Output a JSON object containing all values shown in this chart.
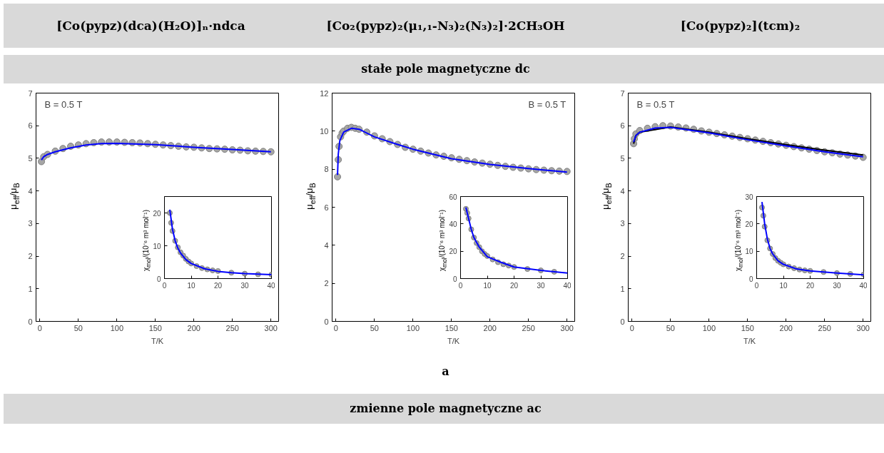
{
  "chart_data": [
    {
      "type": "scatter",
      "title": "[Co(pypz)(dca)(H₂O)]ₙ·ndca",
      "xlabel": "T/K",
      "ylabel": "μ$_{eff}$/μ$_{B}$",
      "xlim": [
        -5,
        310
      ],
      "ylim": [
        0,
        7
      ],
      "xticks": [
        0,
        50,
        100,
        150,
        200,
        250,
        300
      ],
      "yticks": [
        0,
        1,
        2,
        3,
        4,
        5,
        6,
        7
      ],
      "grid": false,
      "marker": "circle",
      "annotations": [
        "stałe pole magnetyczne dc",
        "a",
        "zmienne pole magnetyczne ac",
        "B = 0.5 T"
      ],
      "series": [
        {
          "color": "#a6a6a6",
          "x": [
            2,
            5,
            10,
            20,
            30,
            40,
            50,
            60,
            70,
            80,
            90,
            100,
            110,
            120,
            130,
            140,
            150,
            160,
            170,
            180,
            190,
            200,
            210,
            220,
            230,
            240,
            250,
            260,
            270,
            280,
            290,
            300
          ],
          "values": [
            4.9,
            5.05,
            5.12,
            5.22,
            5.3,
            5.37,
            5.41,
            5.45,
            5.48,
            5.5,
            5.5,
            5.5,
            5.49,
            5.48,
            5.47,
            5.45,
            5.43,
            5.41,
            5.39,
            5.37,
            5.35,
            5.34,
            5.32,
            5.3,
            5.29,
            5.28,
            5.26,
            5.25,
            5.23,
            5.22,
            5.21,
            5.2
          ]
        },
        {
          "type": "line",
          "marker": "none",
          "color": "#0000ff",
          "x": [
            2,
            5,
            10,
            20,
            40,
            60,
            80,
            100,
            150,
            200,
            250,
            300
          ],
          "values": [
            4.95,
            5.05,
            5.12,
            5.2,
            5.32,
            5.41,
            5.45,
            5.46,
            5.42,
            5.34,
            5.27,
            5.2
          ]
        }
      ]
    },
    {
      "type": "scatter",
      "ylabel": "χ$_{mol}$/(10⁻⁶ m³ mol⁻¹)",
      "xlim": [
        0,
        40
      ],
      "ylim": [
        0,
        25
      ],
      "xticks": [
        0,
        10,
        20,
        30,
        40
      ],
      "yticks": [
        0,
        10,
        20
      ],
      "grid": false,
      "marker": "circle",
      "series": [
        {
          "color": "#a6a6a6",
          "x": [
            2,
            2.5,
            3,
            4,
            5,
            6,
            7,
            8,
            9,
            10,
            12,
            14,
            16,
            18,
            20,
            25,
            30,
            35,
            40
          ],
          "values": [
            20,
            17,
            14.5,
            11.5,
            9.5,
            8,
            7,
            6,
            5.2,
            4.6,
            3.8,
            3.2,
            2.8,
            2.5,
            2.3,
            1.8,
            1.5,
            1.3,
            1.2
          ]
        },
        {
          "type": "line",
          "marker": "none",
          "color": "#0000ff",
          "x": [
            2,
            3,
            4,
            5,
            6,
            8,
            10,
            15,
            20,
            25,
            30,
            40
          ],
          "values": [
            21,
            15,
            11.5,
            9.3,
            7.8,
            5.8,
            4.6,
            3,
            2.2,
            1.8,
            1.5,
            1.2
          ]
        }
      ]
    },
    {
      "type": "scatter",
      "title": "[Co₂(pypz)₂(μ₁,₁-N₃)₂(N₃)₂]·2CH₃OH",
      "xlabel": "T/K",
      "ylabel": "μ$_{eff}$/μ$_{B}$",
      "xlim": [
        -5,
        310
      ],
      "ylim": [
        0,
        12
      ],
      "xticks": [
        0,
        50,
        100,
        150,
        200,
        250,
        300
      ],
      "yticks": [
        0,
        2,
        4,
        6,
        8,
        10,
        12
      ],
      "grid": false,
      "marker": "circle",
      "annotations": [
        "B = 0.5 T"
      ],
      "series": [
        {
          "color": "#a6a6a6",
          "x": [
            2,
            3,
            4,
            6,
            8,
            10,
            15,
            20,
            25,
            30,
            40,
            50,
            60,
            70,
            80,
            90,
            100,
            110,
            120,
            130,
            140,
            150,
            160,
            170,
            180,
            190,
            200,
            210,
            220,
            230,
            240,
            250,
            260,
            270,
            280,
            290,
            300
          ],
          "values": [
            7.6,
            8.5,
            9.2,
            9.7,
            9.9,
            10.0,
            10.15,
            10.2,
            10.15,
            10.1,
            9.95,
            9.75,
            9.6,
            9.45,
            9.3,
            9.15,
            9.05,
            8.95,
            8.85,
            8.75,
            8.68,
            8.6,
            8.52,
            8.45,
            8.38,
            8.32,
            8.26,
            8.2,
            8.15,
            8.1,
            8.06,
            8.02,
            7.98,
            7.95,
            7.92,
            7.9,
            7.88
          ]
        },
        {
          "type": "line",
          "marker": "none",
          "color": "#0000ff",
          "x": [
            2,
            3,
            5,
            10,
            20,
            30,
            50,
            80,
            100,
            150,
            200,
            250,
            300
          ],
          "values": [
            7.7,
            8.8,
            9.5,
            9.95,
            10.15,
            10.1,
            9.7,
            9.3,
            9.05,
            8.55,
            8.25,
            8.03,
            7.85
          ]
        }
      ]
    },
    {
      "type": "scatter",
      "ylabel": "χ$_{mol}$/(10⁻⁶ m³ mol⁻¹)",
      "xlim": [
        0,
        40
      ],
      "ylim": [
        0,
        60
      ],
      "xticks": [
        0,
        10,
        20,
        30,
        40
      ],
      "yticks": [
        0,
        20,
        40,
        60
      ],
      "grid": false,
      "marker": "circle",
      "series": [
        {
          "color": "#a6a6a6",
          "x": [
            2,
            2.5,
            3,
            4,
            5,
            6,
            7,
            8,
            9,
            10,
            12,
            14,
            16,
            18,
            20,
            25,
            30,
            35
          ],
          "values": [
            51,
            48,
            44,
            36,
            30,
            26,
            23,
            20,
            18,
            16.5,
            14,
            12,
            10.5,
            9.5,
            8.5,
            7,
            6,
            5
          ]
        },
        {
          "type": "line",
          "marker": "none",
          "color": "#0000ff",
          "x": [
            2,
            3,
            4,
            5,
            7,
            10,
            15,
            20,
            30,
            40
          ],
          "values": [
            52,
            44,
            36,
            30,
            23,
            16,
            12,
            8.5,
            6,
            4
          ]
        }
      ]
    },
    {
      "type": "scatter",
      "title": "[Co(pypz)₂](tcm)₂",
      "xlabel": "T/K",
      "ylabel": "μ$_{eff}$/μ$_{B}$",
      "xlim": [
        -5,
        310
      ],
      "ylim": [
        0,
        7
      ],
      "xticks": [
        0,
        50,
        100,
        150,
        200,
        250,
        300
      ],
      "yticks": [
        0,
        1,
        2,
        3,
        4,
        5,
        6,
        7
      ],
      "grid": false,
      "marker": "circle",
      "annotations": [
        "B = 0.5 T"
      ],
      "series": [
        {
          "color": "#a6a6a6",
          "x": [
            2,
            3,
            5,
            10,
            20,
            30,
            40,
            50,
            60,
            70,
            80,
            90,
            100,
            110,
            120,
            130,
            140,
            150,
            160,
            170,
            180,
            190,
            200,
            210,
            220,
            230,
            240,
            250,
            260,
            270,
            280,
            290,
            300
          ],
          "values": [
            5.45,
            5.6,
            5.75,
            5.85,
            5.92,
            5.97,
            6.0,
            5.99,
            5.96,
            5.93,
            5.89,
            5.84,
            5.8,
            5.76,
            5.72,
            5.68,
            5.64,
            5.6,
            5.56,
            5.52,
            5.48,
            5.44,
            5.4,
            5.36,
            5.32,
            5.28,
            5.24,
            5.2,
            5.17,
            5.13,
            5.1,
            5.07,
            5.03
          ]
        },
        {
          "type": "line",
          "marker": "none",
          "color": "#000000",
          "x": [
            2,
            5,
            10,
            50,
            100,
            150,
            200,
            250,
            300
          ],
          "values": [
            5.45,
            5.7,
            5.8,
            5.96,
            5.8,
            5.6,
            5.42,
            5.25,
            5.1
          ]
        },
        {
          "type": "line",
          "marker": "none",
          "color": "#0000ff",
          "x": [
            2,
            5,
            10,
            30,
            50,
            100,
            150,
            200,
            250,
            300
          ],
          "values": [
            5.5,
            5.7,
            5.8,
            5.93,
            5.95,
            5.78,
            5.57,
            5.38,
            5.2,
            5.05
          ]
        }
      ]
    },
    {
      "type": "scatter",
      "ylabel": "χ$_{mol}$/(10⁻⁶ m³ mol⁻¹)",
      "xlim": [
        0,
        40
      ],
      "ylim": [
        0,
        30
      ],
      "xticks": [
        0,
        10,
        20,
        30,
        40
      ],
      "yticks": [
        0,
        10,
        20,
        30
      ],
      "grid": false,
      "marker": "circle",
      "series": [
        {
          "color": "#a6a6a6",
          "x": [
            2,
            2.5,
            3,
            4,
            5,
            6,
            7,
            8,
            9,
            10,
            12,
            14,
            16,
            18,
            20,
            25,
            30,
            35,
            40
          ],
          "values": [
            26,
            23,
            19,
            14,
            11,
            9,
            7.5,
            6.5,
            5.8,
            5.2,
            4.4,
            3.8,
            3.3,
            3,
            2.8,
            2.4,
            2,
            1.7,
            1.5
          ]
        },
        {
          "type": "line",
          "marker": "none",
          "color": "#0000ff",
          "x": [
            2,
            3,
            4,
            5,
            6,
            8,
            10,
            15,
            20,
            30,
            40
          ],
          "values": [
            28,
            20,
            14.5,
            11,
            9,
            6.5,
            5.2,
            3.5,
            2.8,
            2,
            1.4
          ]
        }
      ]
    }
  ]
}
